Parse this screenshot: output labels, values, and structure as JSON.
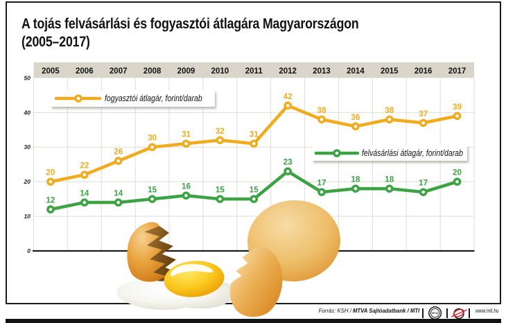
{
  "title": {
    "line1": "A tojás felvásárlási és fogyasztói átlagára Magyarországon",
    "line2": "(2005–2017)"
  },
  "chart_data": {
    "type": "line",
    "categories": [
      "2005",
      "2006",
      "2007",
      "2008",
      "2009",
      "2010",
      "2011",
      "2012",
      "2013",
      "2014",
      "2015",
      "2016",
      "2017"
    ],
    "series": [
      {
        "name": "fogyasztói átlagár, forint/darab",
        "color": "#F0AC1E",
        "values": [
          20,
          22,
          26,
          30,
          31,
          32,
          31,
          42,
          38,
          36,
          38,
          37,
          39
        ]
      },
      {
        "name": "felvásárlási átlagár, forint/darab",
        "color": "#3CA344",
        "values": [
          12,
          14,
          14,
          15,
          16,
          15,
          15,
          23,
          17,
          18,
          18,
          17,
          20
        ]
      }
    ],
    "ylim": [
      0,
      50
    ],
    "yticks": [
      50,
      40,
      30,
      20,
      10,
      0
    ],
    "grid": true,
    "legend_position": "inside"
  },
  "footer": {
    "source_regular": "Forrás: KSH / ",
    "source_bold": "MTVA Sajtóadatbank / MTI",
    "mtva_logo_text": "MTVA",
    "website": "www.mti.hu"
  },
  "colors": {
    "consumer_line": "#F0AC1E",
    "purchase_line": "#3CA344",
    "year_band": "#D9D5CA",
    "gridline": "#DDDDD6",
    "axis": "#1b1b1b",
    "logo_red": "#D41F26"
  }
}
